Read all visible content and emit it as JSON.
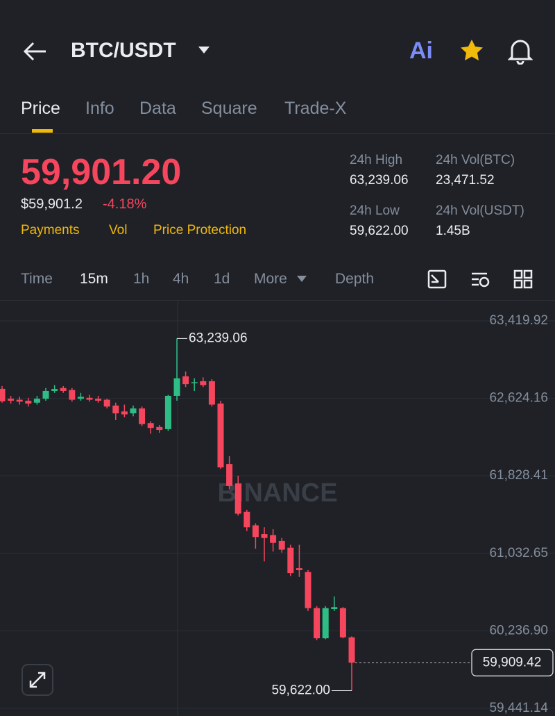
{
  "header": {
    "pair": "BTC/USDT",
    "ai": "Ai"
  },
  "tabs": [
    "Price",
    "Info",
    "Data",
    "Square",
    "Trade-X"
  ],
  "price": {
    "last": "59,901.20",
    "usd": "$59,901.2",
    "change": "-4.18%",
    "links": [
      "Payments",
      "Vol",
      "Price Protection"
    ]
  },
  "stats": [
    {
      "label": "24h High",
      "value": "63,239.06"
    },
    {
      "label": "24h Vol(BTC)",
      "value": "23,471.52"
    },
    {
      "label": "24h Low",
      "value": "59,622.00"
    },
    {
      "label": "24h Vol(USDT)",
      "value": "1.45B"
    }
  ],
  "intervals": [
    "Time",
    "15m",
    "1h",
    "4h",
    "1d",
    "More",
    "Depth"
  ],
  "chart_data": {
    "type": "candlestick",
    "watermark": "BINANCE",
    "up_color": "#2ebd85",
    "down_color": "#f6465d",
    "open": [
      62722,
      62620,
      62610,
      62600,
      62580,
      62620,
      62700,
      62730,
      62710,
      62620,
      62630,
      62620,
      62610,
      62550,
      62490,
      62470,
      62520,
      62370,
      62330,
      62308,
      62650,
      62850,
      62780,
      62800,
      62800,
      62570,
      61950,
      61750,
      61460,
      61320,
      61230,
      61220,
      61160,
      61090,
      60880,
      60840,
      60470,
      60160,
      60460,
      60470,
      60170
    ],
    "high": [
      62750,
      62650,
      62640,
      62630,
      62650,
      62730,
      62760,
      62750,
      62730,
      62680,
      62660,
      62650,
      62620,
      62580,
      62560,
      62550,
      62540,
      62390,
      62350,
      62660,
      63239.06,
      62900,
      62830,
      62840,
      62820,
      62600,
      62030,
      61830,
      61480,
      61340,
      61300,
      61280,
      61190,
      61120,
      61120,
      60860,
      60490,
      60490,
      60590,
      60480,
      60180
    ],
    "low": [
      62580,
      62570,
      62560,
      62540,
      62560,
      62600,
      62680,
      62680,
      62590,
      62600,
      62590,
      62580,
      62520,
      62400,
      62430,
      62440,
      62340,
      62260,
      62270,
      62290,
      62600,
      62740,
      62700,
      62740,
      62540,
      61900,
      61690,
      61420,
      61260,
      61080,
      60950,
      61050,
      61040,
      60800,
      60790,
      60440,
      60140,
      60150,
      60440,
      60160,
      59622.0
    ],
    "close": [
      62594,
      62600,
      62590,
      62570,
      62620,
      62700,
      62720,
      62700,
      62610,
      62640,
      62610,
      62600,
      62540,
      62470,
      62460,
      62520,
      62360,
      62320,
      62300,
      62650,
      62830,
      62770,
      62790,
      62760,
      62560,
      61915,
      61724,
      61440,
      61300,
      61200,
      61190,
      61140,
      61070,
      60830,
      60860,
      60470,
      60160,
      60470,
      60480,
      60170,
      59909.42
    ],
    "ylim": [
      59362,
      63634
    ],
    "yticks": [
      {
        "value": 63419.92,
        "label": "63,419.92"
      },
      {
        "value": 62624.16,
        "label": "62,624.16"
      },
      {
        "value": 61828.41,
        "label": "61,828.41"
      },
      {
        "value": 61032.65,
        "label": "61,032.65"
      },
      {
        "value": 60236.9,
        "label": "60,236.90"
      },
      {
        "value": 59441.14,
        "label": "59,441.14"
      }
    ],
    "annotations": [
      {
        "value": 63239.06,
        "label": "63,239.06"
      },
      {
        "value": 59622.0,
        "label": "59,622.00"
      },
      {
        "value": 59909.42,
        "label": "59,909.42"
      }
    ]
  }
}
